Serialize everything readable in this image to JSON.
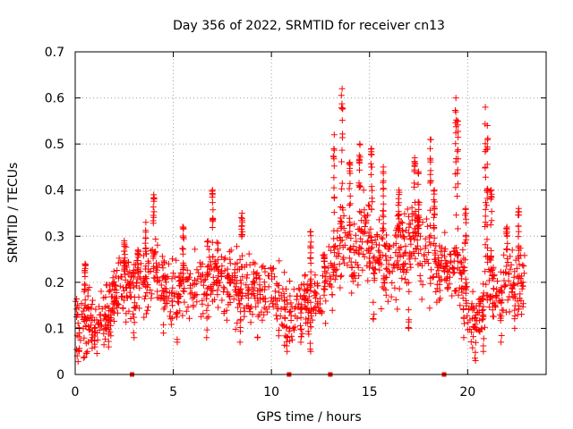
{
  "chart_data": {
    "type": "scatter",
    "title": "Day 356 of 2022, SRMTID for receiver cn13",
    "xlabel": "GPS time / hours",
    "ylabel": "SRMTID / TECUs",
    "xlim": [
      0,
      24
    ],
    "ylim": [
      0,
      0.7
    ],
    "x_ticks": [
      0,
      5,
      10,
      15,
      20
    ],
    "x_tick_labels": [
      "0",
      "5",
      "10",
      "15",
      "20"
    ],
    "y_ticks": [
      0,
      0.1,
      0.2,
      0.3,
      0.4,
      0.5,
      0.6,
      0.7
    ],
    "y_tick_labels": [
      "0",
      "0.1",
      "0.2",
      "0.3",
      "0.4",
      "0.5",
      "0.6",
      "0.7"
    ],
    "grid": true,
    "marker": "+",
    "color": "#ff0000",
    "baseline_hours": [
      2.9,
      10.9,
      13.0,
      18.8
    ],
    "trend": [
      [
        0.0,
        0.1
      ],
      [
        0.5,
        0.12
      ],
      [
        1.0,
        0.11
      ],
      [
        1.5,
        0.12
      ],
      [
        2.0,
        0.17
      ],
      [
        2.5,
        0.2
      ],
      [
        3.0,
        0.19
      ],
      [
        3.5,
        0.2
      ],
      [
        4.0,
        0.22
      ],
      [
        4.5,
        0.2
      ],
      [
        5.0,
        0.18
      ],
      [
        5.5,
        0.19
      ],
      [
        6.0,
        0.19
      ],
      [
        6.5,
        0.2
      ],
      [
        7.0,
        0.22
      ],
      [
        7.5,
        0.21
      ],
      [
        8.0,
        0.2
      ],
      [
        8.5,
        0.19
      ],
      [
        9.0,
        0.18
      ],
      [
        9.5,
        0.19
      ],
      [
        10.0,
        0.2
      ],
      [
        10.5,
        0.14
      ],
      [
        11.0,
        0.12
      ],
      [
        11.5,
        0.16
      ],
      [
        12.0,
        0.16
      ],
      [
        12.5,
        0.15
      ],
      [
        13.0,
        0.22
      ],
      [
        13.5,
        0.3
      ],
      [
        14.0,
        0.28
      ],
      [
        14.5,
        0.28
      ],
      [
        15.0,
        0.28
      ],
      [
        15.5,
        0.25
      ],
      [
        16.0,
        0.23
      ],
      [
        16.5,
        0.26
      ],
      [
        17.0,
        0.28
      ],
      [
        17.5,
        0.29
      ],
      [
        18.0,
        0.26
      ],
      [
        18.5,
        0.22
      ],
      [
        19.0,
        0.24
      ],
      [
        19.5,
        0.24
      ],
      [
        20.0,
        0.15
      ],
      [
        20.5,
        0.12
      ],
      [
        21.0,
        0.2
      ],
      [
        21.5,
        0.18
      ],
      [
        22.0,
        0.19
      ],
      [
        22.5,
        0.2
      ],
      [
        22.9,
        0.21
      ]
    ],
    "spikes": [
      [
        0.5,
        0.24
      ],
      [
        2.5,
        0.29
      ],
      [
        3.2,
        0.27
      ],
      [
        3.6,
        0.33
      ],
      [
        4.0,
        0.39
      ],
      [
        5.5,
        0.32
      ],
      [
        7.0,
        0.4
      ],
      [
        8.5,
        0.35
      ],
      [
        12.0,
        0.31
      ],
      [
        12.7,
        0.26
      ],
      [
        13.2,
        0.52
      ],
      [
        13.6,
        0.62
      ],
      [
        14.0,
        0.46
      ],
      [
        14.5,
        0.5
      ],
      [
        15.1,
        0.49
      ],
      [
        15.7,
        0.45
      ],
      [
        16.5,
        0.4
      ],
      [
        17.3,
        0.47
      ],
      [
        17.5,
        0.44
      ],
      [
        18.1,
        0.51
      ],
      [
        18.3,
        0.4
      ],
      [
        19.4,
        0.6
      ],
      [
        19.5,
        0.55
      ],
      [
        19.9,
        0.36
      ],
      [
        20.9,
        0.58
      ],
      [
        21.0,
        0.54
      ],
      [
        21.2,
        0.4
      ],
      [
        22.0,
        0.32
      ],
      [
        22.6,
        0.36
      ]
    ],
    "dips": [
      [
        0.2,
        0.05
      ],
      [
        1.0,
        0.06
      ],
      [
        1.7,
        0.06
      ],
      [
        3.0,
        0.08
      ],
      [
        4.5,
        0.09
      ],
      [
        5.2,
        0.07
      ],
      [
        6.7,
        0.08
      ],
      [
        8.4,
        0.07
      ],
      [
        9.3,
        0.08
      ],
      [
        10.8,
        0.05
      ],
      [
        11.5,
        0.07
      ],
      [
        12.0,
        0.05
      ],
      [
        15.2,
        0.12
      ],
      [
        17.0,
        0.1
      ],
      [
        19.8,
        0.08
      ],
      [
        20.4,
        0.03
      ],
      [
        20.8,
        0.05
      ],
      [
        21.7,
        0.07
      ],
      [
        22.4,
        0.1
      ]
    ],
    "point_count": 1400,
    "scatter_spread": 0.085
  }
}
